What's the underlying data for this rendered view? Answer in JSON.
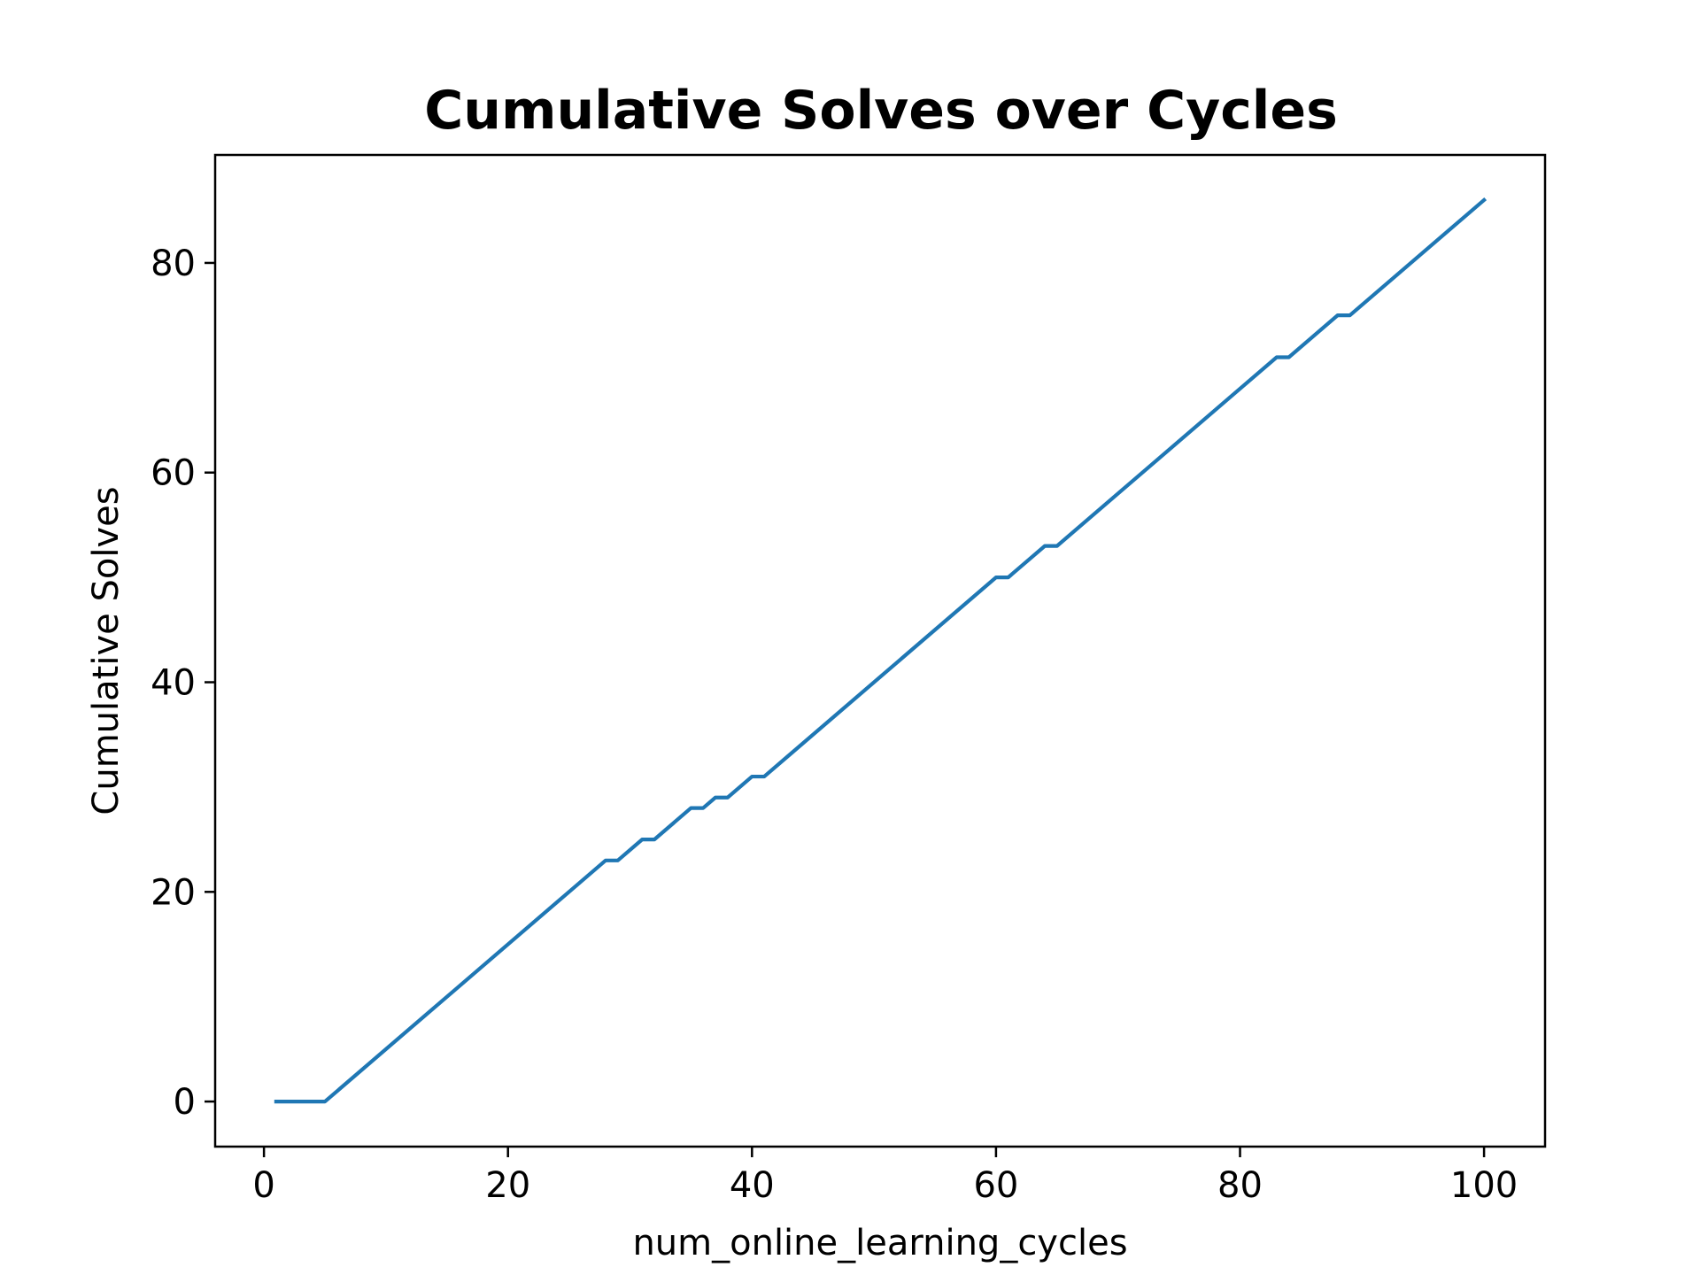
{
  "chart_data": {
    "type": "line",
    "title": "Cumulative Solves over Cycles",
    "xlabel": "num_online_learning_cycles",
    "ylabel": "Cumulative Solves",
    "xlim": [
      -4,
      105
    ],
    "ylim": [
      -4.3,
      90.3
    ],
    "xticks": [
      0,
      20,
      40,
      60,
      80,
      100
    ],
    "yticks": [
      0,
      20,
      40,
      60,
      80
    ],
    "grid": false,
    "legend": "none",
    "line_color": "#1f77b4",
    "series": [
      {
        "x": [
          1,
          5,
          28,
          29,
          31,
          32,
          35,
          36,
          37,
          38,
          40,
          41,
          60,
          61,
          64,
          65,
          83,
          84,
          88,
          89,
          100
        ],
        "y": [
          0,
          0,
          23,
          23,
          25,
          25,
          28,
          28,
          29,
          29,
          31,
          31,
          50,
          50,
          53,
          53,
          71,
          71,
          75,
          75,
          86
        ]
      }
    ]
  }
}
